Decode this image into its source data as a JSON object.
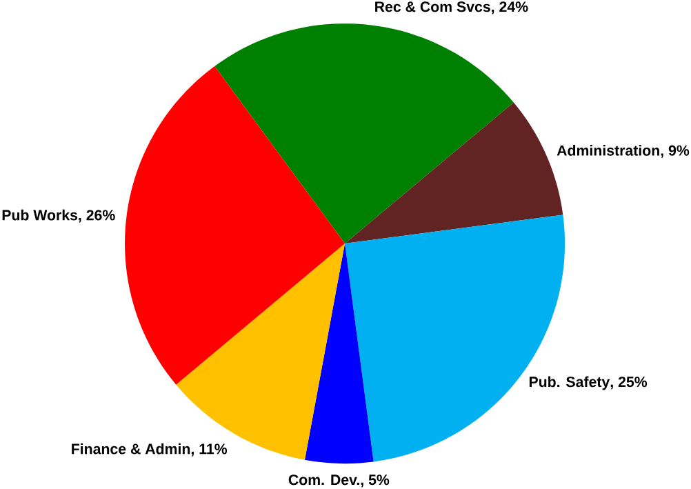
{
  "chart_data": {
    "type": "pie",
    "categories": [
      "Rec & Com Svcs",
      "Administration",
      "Pub. Safety",
      "Com. Dev.",
      "Finance & Admin",
      "Pub Works"
    ],
    "values": [
      24,
      9,
      25,
      5,
      11,
      26
    ],
    "colors": [
      "#008000",
      "#622423",
      "#00b0f0",
      "#0000ff",
      "#ffc000",
      "#ff0000"
    ],
    "value_labels": [
      ", 24%",
      ", 9%",
      ", 25%",
      ", 5%",
      ", 11%",
      ", 26%"
    ]
  }
}
